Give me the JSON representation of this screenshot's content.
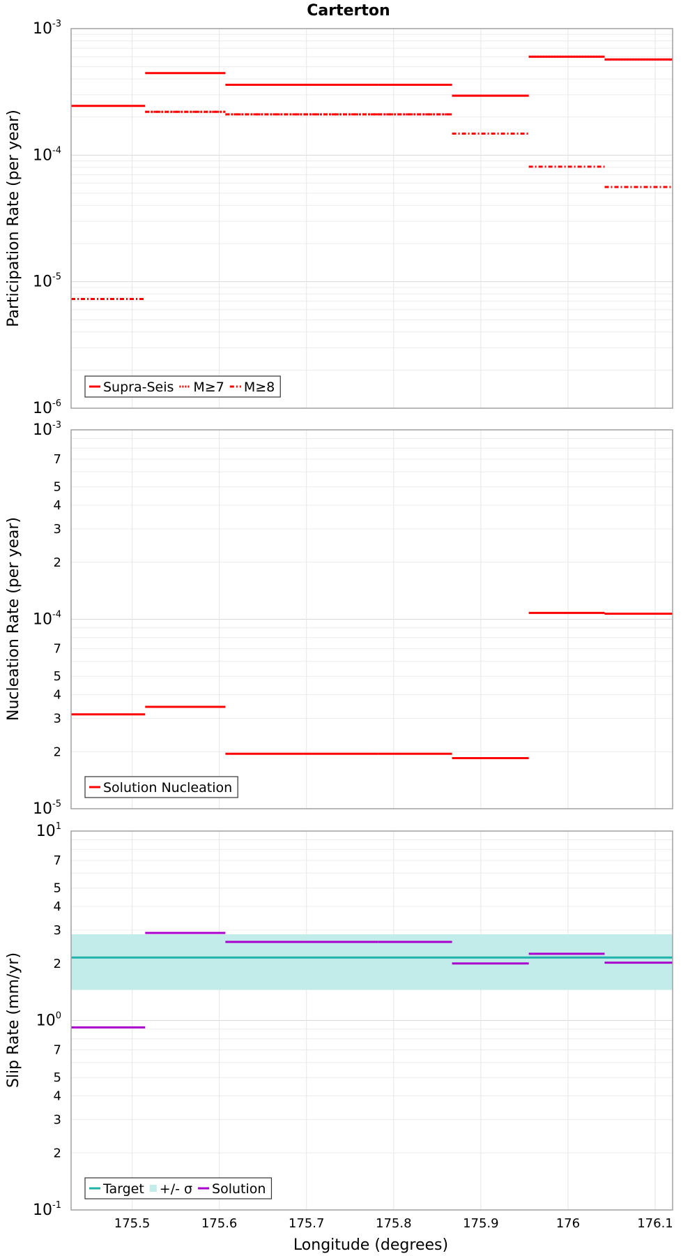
{
  "chart_data": [
    {
      "type": "line",
      "title": "Carterton",
      "ylabel": "Participation Rate (per year)",
      "xlabel": "",
      "yscale": "log",
      "ylim": [
        1e-06,
        0.001
      ],
      "xlim": [
        175.43,
        176.12
      ],
      "y_tick_labels": [
        {
          "base": "10",
          "exp": "-3"
        },
        {
          "base": "10",
          "exp": "-4"
        },
        {
          "base": "10",
          "exp": "-5"
        },
        {
          "base": "10",
          "exp": "-6"
        }
      ],
      "grid": true,
      "legend_position": "bottom-left",
      "segments_x": [
        175.43,
        175.515,
        175.607,
        175.697,
        175.782,
        175.867,
        175.955,
        176.042,
        176.12
      ],
      "series": [
        {
          "name": "Supra-Seis",
          "color": "#ff0000",
          "style": "solid",
          "values": [
            0.000245,
            0.000445,
            0.00036,
            0.00036,
            0.00036,
            0.000295,
            0.0006,
            0.00057
          ]
        },
        {
          "name": "M≥7",
          "color": "#ff0000",
          "style": "dotted",
          "values": [
            null,
            0.00022,
            0.00021,
            0.00021,
            0.00021,
            0.000295,
            0.0006,
            0.00057
          ]
        },
        {
          "name": "M≥8",
          "color": "#ff0000",
          "style": "dashdot",
          "values": [
            7.3e-06,
            0.00022,
            0.00021,
            0.00021,
            0.00021,
            0.000148,
            8.1e-05,
            5.6e-05
          ]
        }
      ]
    },
    {
      "type": "line",
      "title": "",
      "ylabel": "Nucleation Rate (per year)",
      "xlabel": "",
      "yscale": "log",
      "ylim": [
        1e-05,
        0.001
      ],
      "xlim": [
        175.43,
        176.12
      ],
      "y_tick_labels": [
        {
          "base": "10",
          "exp": "-3"
        },
        {
          "base": "7"
        },
        {
          "base": "5"
        },
        {
          "base": "4"
        },
        {
          "base": "3"
        },
        {
          "base": "2"
        },
        {
          "base": "10",
          "exp": "-4"
        },
        {
          "base": "7"
        },
        {
          "base": "5"
        },
        {
          "base": "4"
        },
        {
          "base": "3"
        },
        {
          "base": "2"
        },
        {
          "base": "10",
          "exp": "-5"
        }
      ],
      "grid": true,
      "legend_position": "bottom-left",
      "segments_x": [
        175.43,
        175.515,
        175.607,
        175.697,
        175.782,
        175.867,
        175.955,
        176.042,
        176.12
      ],
      "series": [
        {
          "name": "Solution Nucleation",
          "color": "#ff0000",
          "style": "solid",
          "values": [
            3.15e-05,
            3.45e-05,
            1.95e-05,
            1.95e-05,
            1.95e-05,
            1.85e-05,
            0.000108,
            0.000107
          ]
        }
      ]
    },
    {
      "type": "line",
      "title": "",
      "ylabel": "Slip Rate (mm/yr)",
      "xlabel": "Longitude (degrees)",
      "yscale": "log",
      "ylim": [
        0.1,
        10
      ],
      "xlim": [
        175.43,
        176.12
      ],
      "x_tick_labels": [
        "175.5",
        "175.6",
        "175.7",
        "175.8",
        "175.9",
        "176",
        "176.1"
      ],
      "x_ticks": [
        175.5,
        175.6,
        175.7,
        175.8,
        175.9,
        176.0,
        176.1
      ],
      "y_tick_labels": [
        {
          "base": "10",
          "exp": "1"
        },
        {
          "base": "7"
        },
        {
          "base": "5"
        },
        {
          "base": "4"
        },
        {
          "base": "3"
        },
        {
          "base": "2"
        },
        {
          "base": "10",
          "exp": "0"
        },
        {
          "base": "7"
        },
        {
          "base": "5"
        },
        {
          "base": "4"
        },
        {
          "base": "3"
        },
        {
          "base": "2"
        },
        {
          "base": "10",
          "exp": "-1"
        }
      ],
      "grid": true,
      "legend_position": "bottom-left",
      "segments_x": [
        175.43,
        175.515,
        175.607,
        175.697,
        175.782,
        175.867,
        175.955,
        176.042,
        176.12
      ],
      "target": {
        "name": "Target",
        "value": 2.15,
        "color": "#20b2aa"
      },
      "band": {
        "name": "+/- σ",
        "low": 1.45,
        "high": 2.85,
        "color": "#c2ecea"
      },
      "series": [
        {
          "name": "Solution",
          "color": "#aa00cc",
          "style": "solid",
          "values": [
            0.92,
            2.9,
            2.6,
            2.6,
            2.6,
            2.0,
            2.25,
            2.02
          ]
        }
      ]
    }
  ]
}
